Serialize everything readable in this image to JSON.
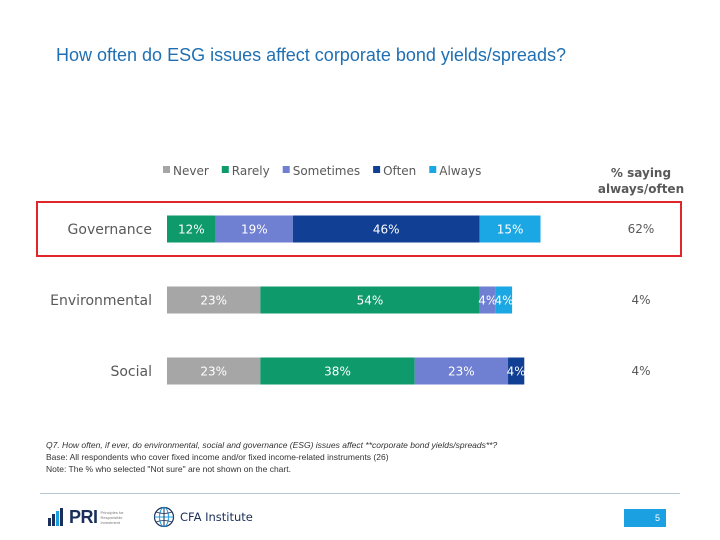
{
  "title": "How often do ESG issues affect corporate bond yields/spreads?",
  "chart_data": {
    "type": "bar",
    "orientation": "horizontal",
    "stacked": true,
    "categories": [
      "Governance",
      "Environmental",
      "Social"
    ],
    "series": [
      {
        "name": "Never",
        "color": "#a6a6a6",
        "values": [
          0,
          23,
          23
        ],
        "labels": [
          "",
          "23%",
          "23%"
        ]
      },
      {
        "name": "Rarely",
        "color": "#0e9a6a",
        "values": [
          12,
          54,
          38
        ],
        "labels": [
          "12%",
          "54%",
          "38%"
        ]
      },
      {
        "name": "Sometimes",
        "color": "#6f7fd1",
        "values": [
          19,
          4,
          23
        ],
        "labels": [
          "19%",
          "4%",
          "23%"
        ]
      },
      {
        "name": "Often",
        "color": "#103f93",
        "values": [
          46,
          0,
          4
        ],
        "labels": [
          "46%",
          "",
          "4%"
        ]
      },
      {
        "name": "Always",
        "color": "#1ba7e3",
        "values": [
          15,
          4,
          0
        ],
        "labels": [
          "15%",
          "4%",
          ""
        ]
      }
    ],
    "xlim": [
      0,
      100
    ],
    "legend": "top",
    "grid": false,
    "side_header": [
      "% saying",
      "always/often"
    ],
    "side_values": [
      "62%",
      "4%",
      "4%"
    ],
    "highlight": {
      "category": "Governance",
      "color": "#e0262b"
    }
  },
  "notes": {
    "question": "Q7. How often, if ever, do environmental, social and governance (ESG) issues affect **corporate bond yields/spreads**?",
    "base": "Base: All respondents who cover fixed income and/or fixed income-related instruments (26)",
    "note": "Note: The % who selected \"Not sure\" are not shown on the chart."
  },
  "footer": {
    "pri_logo_text": "PRI",
    "pri_logo_sub": "Principles for Responsible Investment",
    "cfa_logo_text": "CFA Institute",
    "page_number": "5"
  }
}
